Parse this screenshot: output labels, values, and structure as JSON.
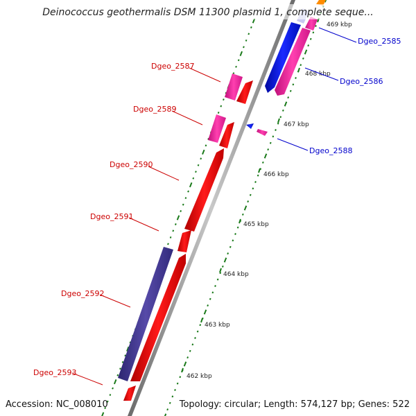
{
  "title": "Deinococcus geothermalis DSM 11300 plasmid 1, complete seque...",
  "footer": {
    "accession": "Accession: NC_008010",
    "summary": "Topology: circular; Length: 574,127 bp; Genes: 522"
  },
  "colors": {
    "backbone": "#8a8a8a",
    "tick": "#1a7a1a",
    "label_left": "#cc0000",
    "label_right": "#0000cc",
    "red": "#ff0000",
    "magenta": "#ff2aa0",
    "blue": "#0a14e6",
    "indigo": "#463c96",
    "orange": "#ff8c00"
  },
  "ticks": [
    {
      "kbp": 462,
      "label": "462 kbp"
    },
    {
      "kbp": 463,
      "label": "463 kbp"
    },
    {
      "kbp": 464,
      "label": "464 kbp"
    },
    {
      "kbp": 465,
      "label": "465 kbp"
    },
    {
      "kbp": 466,
      "label": "466 kbp"
    },
    {
      "kbp": 467,
      "label": "467 kbp"
    },
    {
      "kbp": 468,
      "label": "468 kbp"
    },
    {
      "kbp": 469,
      "label": "469 kbp"
    }
  ],
  "gene_labels": {
    "left": [
      "Dgeo_2587",
      "Dgeo_2589",
      "Dgeo_2590",
      "Dgeo_2591",
      "Dgeo_2592",
      "Dgeo_2593"
    ],
    "right": [
      "Dgeo_2585",
      "Dgeo_2586",
      "Dgeo_2588"
    ]
  }
}
